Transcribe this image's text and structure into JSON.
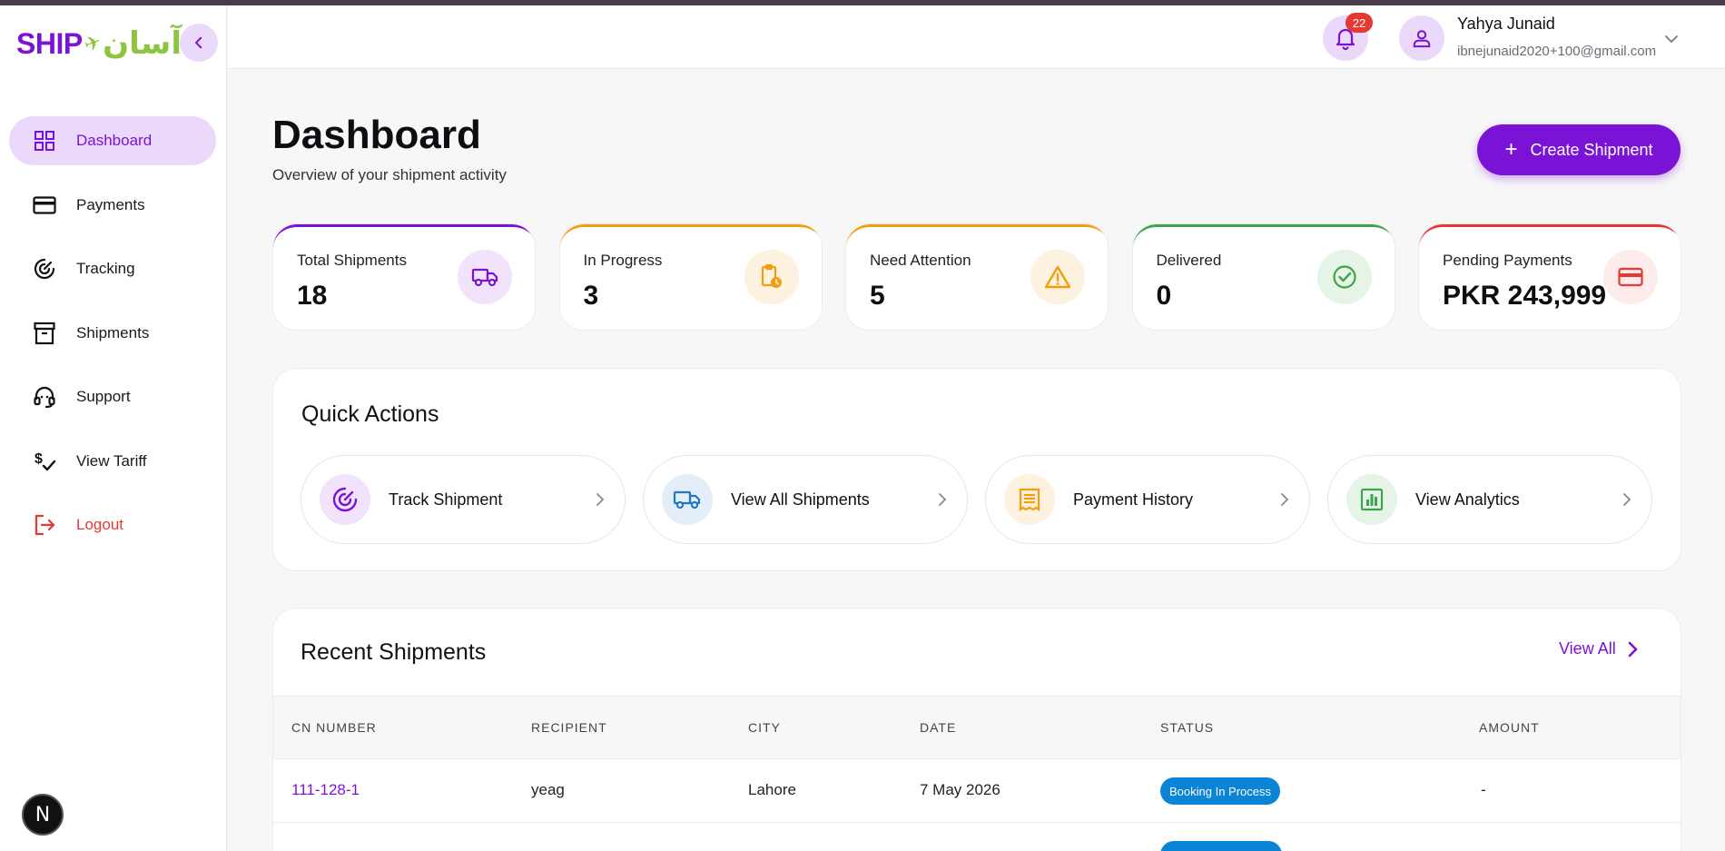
{
  "brand": {
    "ship": "SHIP",
    "urdu": "آسان"
  },
  "sidebar": {
    "items": [
      {
        "label": "Dashboard",
        "icon": "dashboard-icon",
        "active": true
      },
      {
        "label": "Payments",
        "icon": "credit-card-icon"
      },
      {
        "label": "Tracking",
        "icon": "tracking-icon"
      },
      {
        "label": "Shipments",
        "icon": "archive-box-icon"
      },
      {
        "label": "Support",
        "icon": "headset-icon"
      },
      {
        "label": "View Tariff",
        "icon": "tariff-icon"
      },
      {
        "label": "Logout",
        "icon": "logout-icon"
      }
    ],
    "dev_badge": "N"
  },
  "header": {
    "notification_count": "22",
    "user_name": "Yahya Junaid",
    "user_email": "ibnejunaid2020+100@gmail.com"
  },
  "main": {
    "title": "Dashboard",
    "subtitle": "Overview of your shipment activity",
    "create_button": "Create Shipment",
    "create_plus": "+"
  },
  "stats": [
    {
      "label": "Total Shipments",
      "value": "18",
      "color": "#7b13d6",
      "icon": "truck-icon"
    },
    {
      "label": "In Progress",
      "value": "3",
      "color": "#f59e0b",
      "icon": "clipboard-clock-icon"
    },
    {
      "label": "Need Attention",
      "value": "5",
      "color": "#f59e0b",
      "icon": "warning-icon"
    },
    {
      "label": "Delivered",
      "value": "0",
      "color": "#3fa34d",
      "icon": "check-circle-icon"
    },
    {
      "label": "Pending Payments",
      "value": "PKR 243,999",
      "color": "#e53935",
      "icon": "credit-card-icon"
    }
  ],
  "quick_actions": {
    "title": "Quick Actions",
    "items": [
      {
        "label": "Track Shipment",
        "icon": "target-icon"
      },
      {
        "label": "View All Shipments",
        "icon": "truck-icon"
      },
      {
        "label": "Payment History",
        "icon": "receipt-icon"
      },
      {
        "label": "View Analytics",
        "icon": "bar-chart-icon"
      }
    ]
  },
  "recent": {
    "title": "Recent Shipments",
    "view_all": "View All",
    "columns": [
      "CN NUMBER",
      "RECIPIENT",
      "CITY",
      "DATE",
      "STATUS",
      "AMOUNT"
    ],
    "rows": [
      {
        "cn": "111-128-1",
        "recipient": "yeag",
        "city": "Lahore",
        "date": "7 May 2026",
        "status": "Booking In Process",
        "amount": "-"
      }
    ]
  }
}
